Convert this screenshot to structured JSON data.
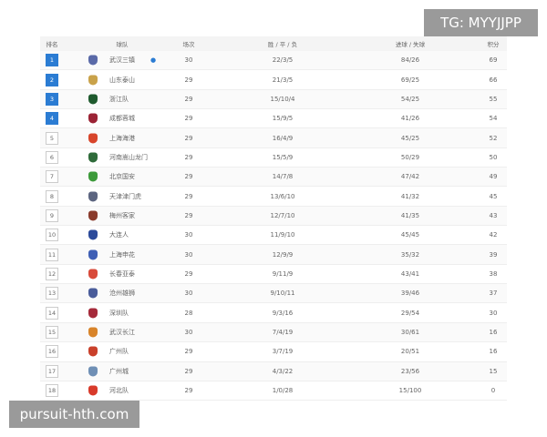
{
  "headers": {
    "rank": "排名",
    "team": "球队",
    "played": "场次",
    "wdl": "胜 / 平 / 负",
    "goals": "进球 / 失球",
    "points": "积分"
  },
  "rows": [
    {
      "rank": "1",
      "team": "武汉三镇",
      "played": "30",
      "wdl": "22/3/5",
      "goals": "84/26",
      "points": "69",
      "color": "#5a6aa8",
      "highlight": true,
      "trophy": true
    },
    {
      "rank": "2",
      "team": "山东泰山",
      "played": "29",
      "wdl": "21/3/5",
      "goals": "69/25",
      "points": "66",
      "color": "#c9a24a",
      "highlight": true
    },
    {
      "rank": "3",
      "team": "浙江队",
      "played": "29",
      "wdl": "15/10/4",
      "goals": "54/25",
      "points": "55",
      "color": "#1f5a2e",
      "highlight": true
    },
    {
      "rank": "4",
      "team": "成都蓉城",
      "played": "29",
      "wdl": "15/9/5",
      "goals": "41/26",
      "points": "54",
      "color": "#9b2335",
      "highlight": true
    },
    {
      "rank": "5",
      "team": "上海海港",
      "played": "29",
      "wdl": "16/4/9",
      "goals": "45/25",
      "points": "52",
      "color": "#d8452b"
    },
    {
      "rank": "6",
      "team": "河南嵩山龙门",
      "played": "29",
      "wdl": "15/5/9",
      "goals": "50/29",
      "points": "50",
      "color": "#2f6b3a"
    },
    {
      "rank": "7",
      "team": "北京国安",
      "played": "29",
      "wdl": "14/7/8",
      "goals": "47/42",
      "points": "49",
      "color": "#3c9a3a"
    },
    {
      "rank": "8",
      "team": "天津津门虎",
      "played": "29",
      "wdl": "13/6/10",
      "goals": "41/32",
      "points": "45",
      "color": "#5c6580"
    },
    {
      "rank": "9",
      "team": "梅州客家",
      "played": "29",
      "wdl": "12/7/10",
      "goals": "41/35",
      "points": "43",
      "color": "#8a3b2c"
    },
    {
      "rank": "10",
      "team": "大连人",
      "played": "30",
      "wdl": "11/9/10",
      "goals": "45/45",
      "points": "42",
      "color": "#2b4a9a"
    },
    {
      "rank": "11",
      "team": "上海申花",
      "played": "30",
      "wdl": "12/9/9",
      "goals": "35/32",
      "points": "39",
      "color": "#3f5fb5"
    },
    {
      "rank": "12",
      "team": "长春亚泰",
      "played": "29",
      "wdl": "9/11/9",
      "goals": "43/41",
      "points": "38",
      "color": "#d84a3a"
    },
    {
      "rank": "13",
      "team": "沧州雄狮",
      "played": "30",
      "wdl": "9/10/11",
      "goals": "39/46",
      "points": "37",
      "color": "#4a5c9a"
    },
    {
      "rank": "14",
      "team": "深圳队",
      "played": "28",
      "wdl": "9/3/16",
      "goals": "29/54",
      "points": "30",
      "color": "#a52a3a"
    },
    {
      "rank": "15",
      "team": "武汉长江",
      "played": "30",
      "wdl": "7/4/19",
      "goals": "30/61",
      "points": "16",
      "color": "#d8842a"
    },
    {
      "rank": "16",
      "team": "广州队",
      "played": "29",
      "wdl": "3/7/19",
      "goals": "20/51",
      "points": "16",
      "color": "#c9402a"
    },
    {
      "rank": "17",
      "team": "广州城",
      "played": "29",
      "wdl": "4/3/22",
      "goals": "23/56",
      "points": "15",
      "color": "#6f8fb5"
    },
    {
      "rank": "18",
      "team": "河北队",
      "played": "29",
      "wdl": "1/0/28",
      "goals": "15/100",
      "points": "0",
      "color": "#d83a2a"
    }
  ],
  "watermarks": {
    "top": "TG: MYYJJPP",
    "bottom": "pursuit-hth.com"
  },
  "colors": {
    "accent": "#2b7cd3"
  }
}
